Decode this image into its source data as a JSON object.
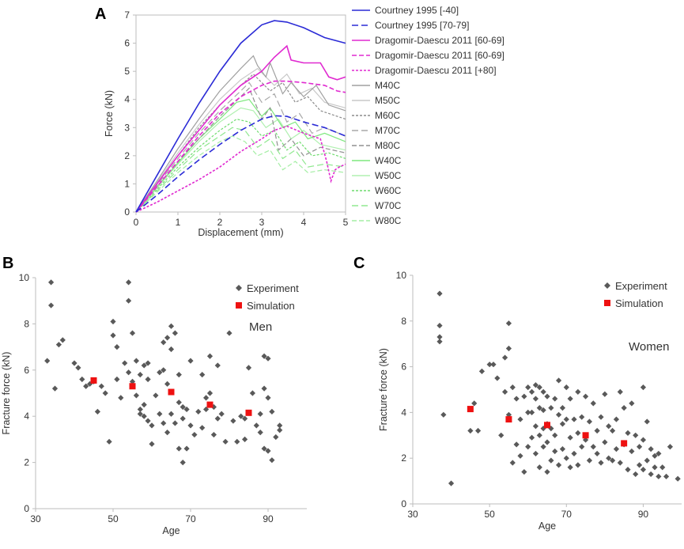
{
  "panels": {
    "a": {
      "letter": "A",
      "colors": {
        "courtney": "#2b2bd6",
        "dragomir": "#e02ad0",
        "men": "#a0a0a0",
        "women": "#8cf28c"
      },
      "legend_items": [
        "Courtney 1995 [-40]",
        "Courtney 1995 [70-79]",
        "Dragomir-Daescu 2011 [60-69]",
        "Dragomir-Daescu 2011 [60-69]",
        "Dragomir-Daescu 2011 [+80]",
        "M40C",
        "M50C",
        "M60C",
        "M70C",
        "M80C",
        "W40C",
        "W50C",
        "W60C",
        "W70C",
        "W80C"
      ]
    },
    "b": {
      "letter": "B",
      "annotation": "Men"
    },
    "c": {
      "letter": "C",
      "annotation": "Women"
    }
  },
  "chart_data": [
    {
      "type": "line",
      "title": "",
      "xlabel": "Displacement (mm)",
      "ylabel": "Force (kN)",
      "xlim": [
        0,
        5
      ],
      "ylim": [
        0,
        7
      ],
      "xticks": [
        0,
        1,
        2,
        3,
        4,
        5
      ],
      "yticks": [
        0,
        1,
        2,
        3,
        4,
        5,
        6,
        7
      ],
      "series": [
        {
          "name": "Courtney 1995 [-40]",
          "color": "#2b2bd6",
          "dash": "solid",
          "x": [
            0,
            0.5,
            1.0,
            1.5,
            2.0,
            2.5,
            3.0,
            3.3,
            3.6,
            4.0,
            4.5,
            5.0
          ],
          "y": [
            0,
            1.3,
            2.6,
            3.85,
            5.0,
            6.0,
            6.65,
            6.8,
            6.75,
            6.55,
            6.2,
            6.0
          ]
        },
        {
          "name": "Courtney 1995 [70-79]",
          "color": "#2b2bd6",
          "dash": "long",
          "x": [
            0,
            0.5,
            1.0,
            1.5,
            2.0,
            2.5,
            3.0,
            3.3,
            3.6,
            4.0,
            4.5,
            5.0
          ],
          "y": [
            0,
            0.6,
            1.25,
            1.85,
            2.4,
            2.9,
            3.3,
            3.42,
            3.4,
            3.2,
            3.0,
            2.7
          ]
        },
        {
          "name": "Dragomir-Daescu 2011 [60-69]",
          "color": "#e02ad0",
          "dash": "solid",
          "x": [
            0,
            0.5,
            1.0,
            1.5,
            2.0,
            2.5,
            3.0,
            3.3,
            3.6,
            3.7,
            4.0,
            4.4,
            4.6,
            4.8,
            5.0
          ],
          "y": [
            0,
            1.0,
            2.0,
            2.9,
            3.8,
            4.5,
            5.0,
            5.5,
            5.9,
            5.4,
            5.3,
            5.3,
            4.8,
            4.7,
            4.8
          ]
        },
        {
          "name": "Dragomir-Daescu 2011 [60-69]",
          "color": "#e02ad0",
          "dash": "medium",
          "x": [
            0,
            0.5,
            1.0,
            1.5,
            2.0,
            2.5,
            3.0,
            3.3,
            3.6,
            4.0,
            4.5,
            4.8,
            5.0
          ],
          "y": [
            0,
            0.9,
            1.8,
            2.7,
            3.5,
            4.1,
            4.5,
            4.65,
            4.65,
            4.6,
            4.5,
            4.3,
            4.25
          ]
        },
        {
          "name": "Dragomir-Daescu 2011 [+80]",
          "color": "#e02ad0",
          "dash": "short",
          "x": [
            0,
            0.5,
            1.0,
            1.5,
            2.0,
            2.5,
            3.0,
            3.3,
            3.6,
            4.0,
            4.4,
            4.55,
            4.65,
            4.75,
            4.85,
            5.0
          ],
          "y": [
            0,
            0.35,
            0.75,
            1.15,
            1.6,
            2.15,
            2.6,
            2.9,
            3.05,
            2.8,
            2.6,
            1.8,
            1.1,
            1.5,
            1.6,
            1.7
          ]
        },
        {
          "name": "M40C",
          "color": "#a0a0a0",
          "dash": "solid",
          "x": [
            0,
            0.5,
            1.0,
            1.5,
            2.0,
            2.5,
            2.8,
            2.9,
            3.1,
            3.2,
            3.5,
            3.7,
            4.0,
            4.3,
            4.6,
            5.0
          ],
          "y": [
            0,
            1.1,
            2.25,
            3.3,
            4.3,
            5.1,
            5.55,
            5.2,
            4.8,
            5.3,
            4.2,
            4.6,
            4.1,
            4.5,
            3.8,
            3.6
          ]
        },
        {
          "name": "M50C",
          "color": "#c8c8c8",
          "dash": "solid",
          "x": [
            0,
            0.5,
            1.0,
            1.5,
            2.0,
            2.5,
            2.9,
            3.3,
            3.6,
            3.9,
            4.2,
            4.5,
            5.0
          ],
          "y": [
            0,
            1.05,
            2.1,
            3.1,
            4.0,
            4.7,
            5.1,
            4.5,
            4.9,
            4.2,
            4.4,
            3.9,
            3.7
          ]
        },
        {
          "name": "M60C",
          "color": "#8c8c8c",
          "dash": "short",
          "x": [
            0,
            0.5,
            1.0,
            1.5,
            2.0,
            2.5,
            2.8,
            3.2,
            3.5,
            3.8,
            4.1,
            4.4,
            5.0
          ],
          "y": [
            0,
            1.0,
            2.0,
            3.0,
            3.8,
            4.5,
            4.9,
            4.3,
            4.6,
            3.9,
            4.1,
            3.6,
            3.3
          ]
        },
        {
          "name": "M70C",
          "color": "#a8a8a8",
          "dash": "long",
          "x": [
            0,
            0.5,
            1.0,
            1.5,
            2.0,
            2.5,
            2.7,
            3.0,
            3.3,
            3.6,
            3.9,
            4.2,
            4.5,
            5.0
          ],
          "y": [
            0,
            0.95,
            1.9,
            2.8,
            3.6,
            4.3,
            4.6,
            3.9,
            4.2,
            3.2,
            3.5,
            2.8,
            3.0,
            2.7
          ]
        },
        {
          "name": "M80C",
          "color": "#909090",
          "dash": "medium",
          "x": [
            0,
            0.5,
            1.0,
            1.5,
            2.0,
            2.5,
            2.7,
            3.0,
            3.2,
            3.4,
            3.7,
            4.0,
            4.4,
            5.0
          ],
          "y": [
            0,
            0.9,
            1.8,
            2.6,
            3.4,
            4.1,
            4.4,
            3.3,
            3.7,
            2.2,
            2.6,
            2.0,
            2.3,
            2.1
          ]
        },
        {
          "name": "W40C",
          "color": "#7ee87e",
          "dash": "solid",
          "x": [
            0,
            0.5,
            1.0,
            1.5,
            2.0,
            2.4,
            2.7,
            3.0,
            3.2,
            3.5,
            3.8,
            4.1,
            4.5,
            5.0
          ],
          "y": [
            0,
            0.9,
            1.75,
            2.6,
            3.3,
            3.9,
            4.0,
            3.4,
            3.7,
            3.0,
            3.2,
            2.6,
            2.8,
            2.5
          ]
        },
        {
          "name": "W50C",
          "color": "#b0f0b0",
          "dash": "solid",
          "x": [
            0,
            0.5,
            1.0,
            1.5,
            2.0,
            2.5,
            2.8,
            3.1,
            3.4,
            3.7,
            4.0,
            4.4,
            5.0
          ],
          "y": [
            0,
            0.85,
            1.7,
            2.5,
            3.2,
            3.7,
            3.6,
            3.0,
            3.3,
            2.6,
            2.9,
            2.4,
            2.2
          ]
        },
        {
          "name": "W60C",
          "color": "#6fdc6f",
          "dash": "short",
          "x": [
            0,
            0.5,
            1.0,
            1.5,
            2.0,
            2.4,
            2.7,
            3.0,
            3.3,
            3.6,
            3.9,
            4.2,
            4.6,
            5.0
          ],
          "y": [
            0,
            0.8,
            1.6,
            2.3,
            2.9,
            3.3,
            3.2,
            2.7,
            2.9,
            2.2,
            2.5,
            2.0,
            2.1,
            1.9
          ]
        },
        {
          "name": "W70C",
          "color": "#90e890",
          "dash": "long",
          "x": [
            0,
            0.5,
            1.0,
            1.5,
            2.0,
            2.3,
            2.6,
            2.9,
            3.2,
            3.5,
            3.8,
            4.1,
            4.5,
            5.0
          ],
          "y": [
            0,
            0.75,
            1.5,
            2.2,
            2.7,
            3.0,
            2.9,
            2.3,
            2.6,
            1.9,
            2.2,
            1.6,
            1.7,
            1.6
          ]
        },
        {
          "name": "W80C",
          "color": "#a4eea4",
          "dash": "medium",
          "x": [
            0,
            0.5,
            1.0,
            1.5,
            2.0,
            2.3,
            2.6,
            2.9,
            3.2,
            3.5,
            3.8,
            4.1,
            4.5,
            5.0
          ],
          "y": [
            0,
            0.7,
            1.4,
            2.0,
            2.5,
            2.7,
            2.5,
            2.0,
            2.2,
            1.5,
            1.8,
            1.4,
            1.5,
            1.4
          ]
        }
      ]
    },
    {
      "type": "scatter",
      "title": "Men",
      "xlabel": "Age",
      "ylabel": "Fracture force (kN)",
      "xlim": [
        30,
        100
      ],
      "ylim": [
        0,
        10
      ],
      "xticks": [
        30,
        50,
        70,
        90
      ],
      "yticks": [
        0,
        2,
        4,
        6,
        8,
        10
      ],
      "legend": [
        "Experiment",
        "Simulation"
      ],
      "series": [
        {
          "name": "Experiment",
          "color": "#595959",
          "marker": "diamond",
          "x": [
            33,
            34,
            34,
            35,
            36,
            37,
            40,
            41,
            42,
            43,
            44,
            45,
            46,
            47,
            48,
            49,
            50,
            50,
            51,
            51,
            52,
            53,
            54,
            54,
            54,
            55,
            55,
            56,
            56,
            57,
            57,
            57,
            58,
            58,
            58,
            59,
            59,
            59,
            60,
            60,
            61,
            62,
            62,
            63,
            63,
            63,
            64,
            64,
            64,
            65,
            65,
            65,
            66,
            66,
            67,
            67,
            67,
            68,
            68,
            68,
            69,
            69,
            70,
            70,
            71,
            72,
            73,
            73,
            74,
            74,
            75,
            75,
            76,
            76,
            77,
            77,
            78,
            79,
            80,
            81,
            82,
            83,
            84,
            84,
            85,
            86,
            87,
            88,
            88,
            89,
            89,
            89,
            90,
            90,
            90,
            91,
            91,
            92,
            93,
            93
          ],
          "y": [
            6.4,
            9.8,
            8.8,
            5.2,
            7.1,
            7.3,
            6.3,
            6.1,
            5.6,
            5.3,
            5.4,
            5.5,
            4.2,
            5.3,
            5.0,
            2.9,
            7.5,
            8.1,
            5.6,
            7.0,
            4.8,
            6.3,
            9.8,
            9.0,
            5.9,
            7.6,
            5.5,
            6.4,
            4.9,
            5.8,
            4.3,
            4.1,
            4.5,
            6.2,
            4.0,
            5.6,
            6.3,
            3.8,
            3.6,
            2.8,
            4.9,
            5.9,
            4.1,
            7.2,
            6.0,
            3.7,
            7.4,
            5.4,
            3.3,
            7.9,
            6.9,
            4.1,
            7.6,
            3.7,
            5.8,
            4.6,
            2.6,
            4.4,
            3.9,
            2.0,
            4.3,
            2.6,
            6.4,
            3.6,
            3.2,
            4.2,
            5.8,
            3.5,
            4.8,
            4.3,
            6.6,
            5.0,
            4.4,
            3.2,
            6.2,
            3.9,
            4.1,
            2.9,
            7.6,
            3.8,
            2.9,
            4.0,
            3.0,
            3.9,
            6.1,
            5.0,
            3.6,
            4.1,
            3.3,
            6.6,
            5.2,
            2.6,
            6.5,
            4.8,
            2.5,
            2.1,
            4.2,
            3.1,
            3.6,
            3.4
          ]
        },
        {
          "name": "Simulation",
          "color": "#ee1111",
          "marker": "square",
          "x": [
            45,
            55,
            65,
            75,
            85
          ],
          "y": [
            5.55,
            5.3,
            5.05,
            4.5,
            4.15
          ]
        }
      ]
    },
    {
      "type": "scatter",
      "title": "Women",
      "xlabel": "Age",
      "ylabel": "Fracture force (kN)",
      "xlim": [
        30,
        100
      ],
      "ylim": [
        0,
        10
      ],
      "xticks": [
        30,
        50,
        70,
        90
      ],
      "yticks": [
        0,
        2,
        4,
        6,
        8,
        10
      ],
      "legend": [
        "Experiment",
        "Simulation"
      ],
      "series": [
        {
          "name": "Experiment",
          "color": "#595959",
          "marker": "diamond",
          "x": [
            37,
            37,
            37,
            37,
            38,
            40,
            45,
            46,
            47,
            48,
            50,
            51,
            52,
            53,
            54,
            54,
            55,
            55,
            55,
            56,
            56,
            57,
            57,
            58,
            58,
            59,
            59,
            60,
            60,
            60,
            61,
            61,
            61,
            62,
            62,
            62,
            62,
            63,
            63,
            63,
            63,
            64,
            64,
            64,
            64,
            65,
            65,
            65,
            65,
            66,
            66,
            66,
            67,
            67,
            67,
            68,
            68,
            68,
            69,
            69,
            69,
            70,
            70,
            70,
            71,
            71,
            71,
            72,
            72,
            73,
            73,
            73,
            74,
            74,
            75,
            75,
            76,
            76,
            77,
            77,
            78,
            78,
            79,
            79,
            80,
            80,
            81,
            81,
            82,
            82,
            83,
            83,
            84,
            84,
            85,
            85,
            86,
            86,
            87,
            87,
            88,
            88,
            89,
            89,
            90,
            90,
            90,
            91,
            91,
            92,
            92,
            93,
            93,
            94,
            94,
            95,
            96,
            97,
            99
          ],
          "y": [
            9.2,
            7.8,
            7.3,
            7.1,
            3.9,
            0.9,
            3.2,
            4.4,
            3.2,
            5.8,
            6.1,
            6.1,
            5.5,
            3.0,
            4.9,
            6.4,
            7.9,
            6.8,
            3.9,
            5.1,
            1.8,
            4.6,
            2.6,
            3.7,
            2.1,
            4.7,
            1.4,
            5.1,
            4.0,
            2.5,
            4.9,
            4.0,
            2.9,
            5.2,
            4.6,
            3.4,
            2.2,
            5.1,
            4.2,
            3.0,
            1.6,
            4.9,
            4.1,
            3.3,
            2.5,
            4.7,
            3.5,
            2.7,
            1.4,
            4.2,
            3.3,
            1.9,
            4.6,
            3.0,
            2.3,
            5.4,
            3.9,
            1.7,
            4.2,
            3.5,
            2.4,
            5.1,
            3.7,
            2.0,
            4.6,
            2.9,
            1.6,
            3.7,
            2.2,
            4.9,
            3.1,
            1.7,
            3.8,
            2.5,
            4.7,
            2.8,
            3.6,
            1.9,
            4.4,
            2.5,
            3.2,
            2.2,
            3.8,
            1.8,
            4.8,
            2.7,
            3.4,
            2.0,
            3.2,
            1.9,
            3.7,
            2.4,
            4.9,
            1.8,
            4.2,
            2.6,
            3.1,
            1.5,
            4.4,
            2.3,
            3.0,
            1.3,
            2.5,
            1.7,
            5.1,
            2.8,
            1.5,
            3.6,
            1.9,
            2.4,
            1.3,
            2.1,
            1.6,
            2.2,
            1.2,
            1.6,
            1.2,
            2.5,
            1.1
          ]
        },
        {
          "name": "Simulation",
          "color": "#ee1111",
          "marker": "square",
          "x": [
            45,
            55,
            65,
            75,
            85
          ],
          "y": [
            4.15,
            3.7,
            3.45,
            3.0,
            2.65
          ]
        }
      ]
    }
  ]
}
